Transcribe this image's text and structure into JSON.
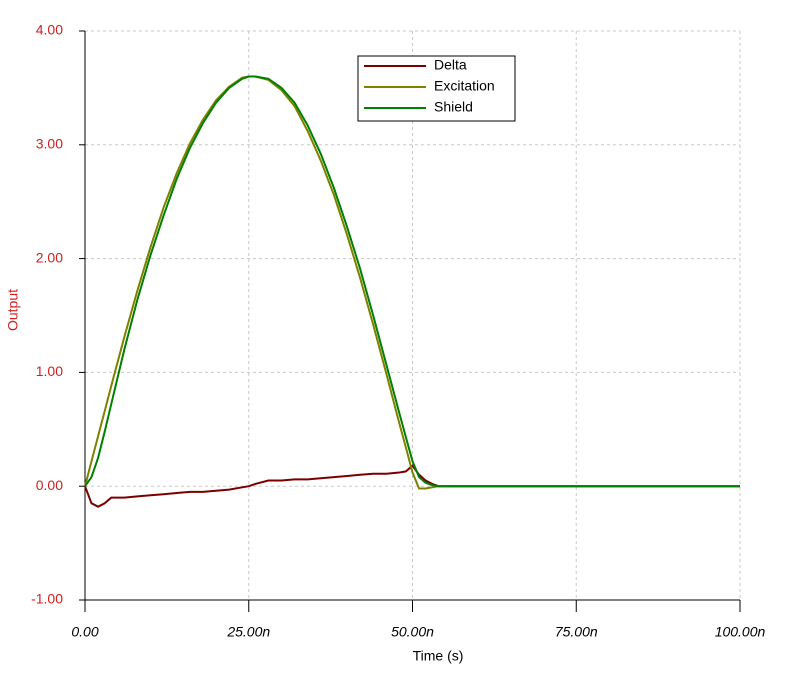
{
  "chart_data": {
    "type": "line",
    "x_label": "Time (s)",
    "y_label": "Output",
    "x": [
      0,
      1,
      2,
      3,
      4,
      6,
      8,
      10,
      12,
      14,
      16,
      18,
      20,
      22,
      24,
      25,
      26,
      28,
      30,
      32,
      34,
      36,
      38,
      40,
      42,
      44,
      46,
      48,
      49,
      50,
      51,
      52,
      53,
      54,
      60,
      70,
      80,
      90,
      100
    ],
    "series": [
      {
        "name": "Delta",
        "color": "#7a0000",
        "values": [
          0,
          -0.15,
          -0.18,
          -0.15,
          -0.1,
          -0.1,
          -0.09,
          -0.08,
          -0.07,
          -0.06,
          -0.05,
          -0.05,
          -0.04,
          -0.03,
          -0.01,
          0,
          0.02,
          0.05,
          0.05,
          0.06,
          0.06,
          0.07,
          0.08,
          0.09,
          0.1,
          0.11,
          0.11,
          0.12,
          0.13,
          0.18,
          0.1,
          0.05,
          0.02,
          0,
          0,
          0,
          0,
          0,
          0
        ]
      },
      {
        "name": "Excitation",
        "color": "#808000",
        "values": [
          0,
          0.22,
          0.44,
          0.66,
          0.88,
          1.31,
          1.72,
          2.1,
          2.45,
          2.75,
          3.01,
          3.22,
          3.39,
          3.51,
          3.59,
          3.6,
          3.6,
          3.57,
          3.48,
          3.34,
          3.12,
          2.86,
          2.56,
          2.21,
          1.83,
          1.42,
          0.99,
          0.55,
          0.34,
          0.12,
          -0.02,
          -0.02,
          -0.01,
          0,
          0,
          0,
          0,
          0,
          0
        ]
      },
      {
        "name": "Shield",
        "color": "#008000",
        "values": [
          0,
          0.08,
          0.25,
          0.48,
          0.72,
          1.2,
          1.64,
          2.03,
          2.38,
          2.7,
          2.97,
          3.19,
          3.37,
          3.5,
          3.58,
          3.6,
          3.6,
          3.58,
          3.5,
          3.37,
          3.17,
          2.92,
          2.62,
          2.28,
          1.91,
          1.5,
          1.07,
          0.64,
          0.43,
          0.22,
          0.08,
          0.03,
          0.01,
          0,
          0,
          0,
          0,
          0,
          0
        ]
      }
    ],
    "xlim": [
      0,
      100
    ],
    "xticks": [
      {
        "value": 0,
        "label": "0.00"
      },
      {
        "value": 25,
        "label": "25.00n"
      },
      {
        "value": 50,
        "label": "50.00n"
      },
      {
        "value": 75,
        "label": "75.00n"
      },
      {
        "value": 100,
        "label": "100.00n"
      }
    ],
    "ylim": [
      -1,
      4
    ],
    "yticks": [
      {
        "value": -1,
        "label": "-1.00"
      },
      {
        "value": 0,
        "label": "0.00"
      },
      {
        "value": 1,
        "label": "1.00"
      },
      {
        "value": 2,
        "label": "2.00"
      },
      {
        "value": 3,
        "label": "3.00"
      },
      {
        "value": 4,
        "label": "4.00"
      }
    ],
    "grid": true,
    "legend": "top"
  }
}
